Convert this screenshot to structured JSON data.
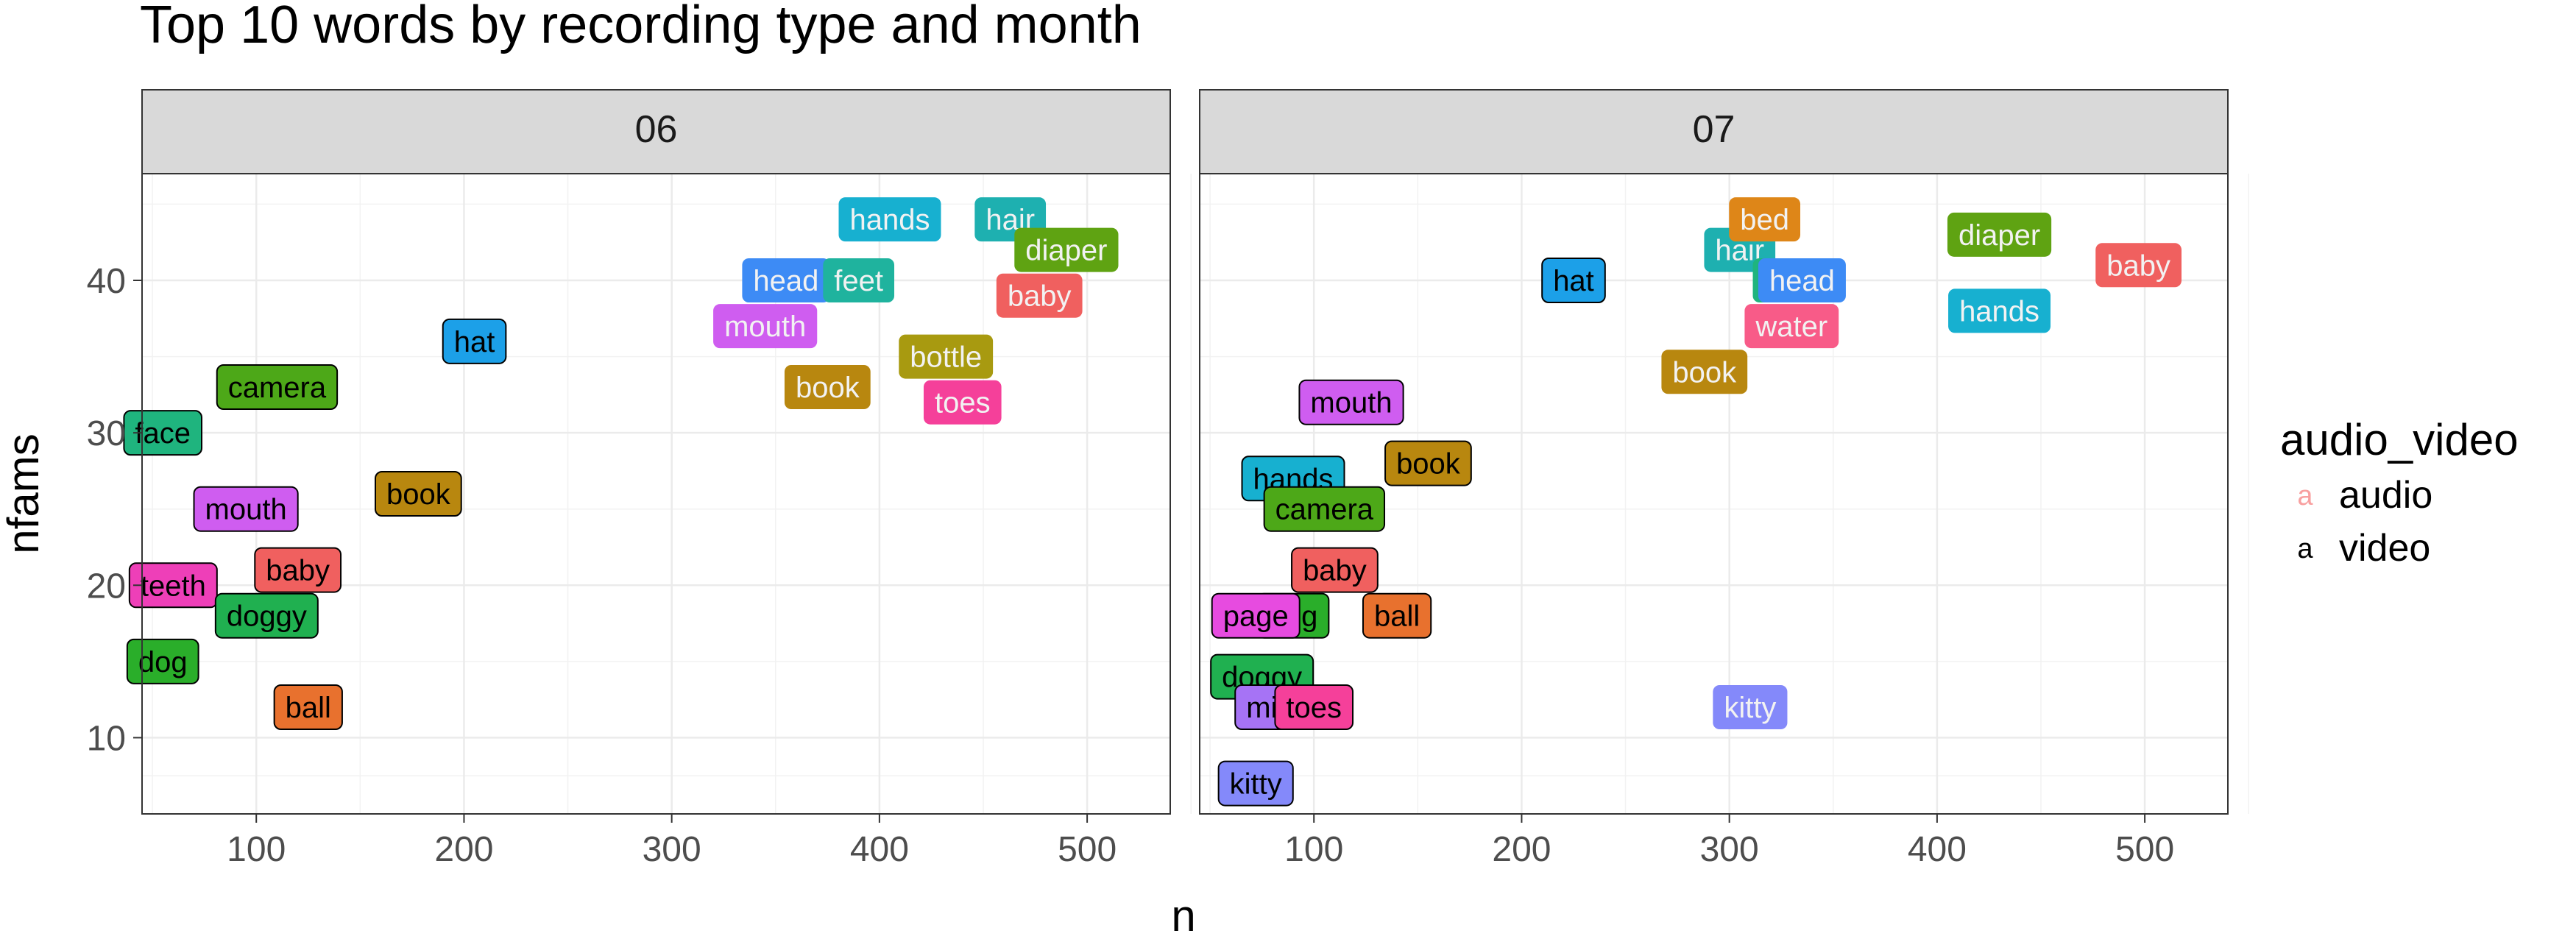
{
  "chart_data": {
    "type": "scatter",
    "title": "Top 10 words by recording type and month",
    "xlabel": "n",
    "ylabel": "nfams",
    "xlim": [
      45,
      540
    ],
    "ylim": [
      5,
      47
    ],
    "x_ticks": [
      "100",
      "200",
      "300",
      "400",
      "500"
    ],
    "y_ticks": [
      "10",
      "20",
      "30",
      "40"
    ],
    "grid": true,
    "legend": {
      "title": "audio_video",
      "position": "right",
      "entries": [
        {
          "label": "audio",
          "key": "a",
          "color": "#F8A0A0"
        },
        {
          "label": "video",
          "key": "a",
          "color": "#000000"
        }
      ]
    },
    "word_colors": {
      "baby": "#F0605F",
      "ball": "#E8712E",
      "bed": "#DE8618",
      "book": "#B8870F",
      "bottle": "#A89A10",
      "diaper": "#5FA312",
      "dog": "#2AAE2A",
      "doggy": "#20B050",
      "face": "#1FB47E",
      "feet": "#1FB39E",
      "hair": "#1EB0B0",
      "hands": "#17B0D0",
      "hat": "#1CA0E8",
      "head": "#3D8BF5",
      "kitty": "#8489FA",
      "milk": "#A673F5",
      "mouth": "#CF5DF0",
      "page": "#E74BE0",
      "teeth": "#EE3FB8",
      "toes": "#F5409A",
      "water": "#F85B88",
      "camera": "#4DA818"
    },
    "panels": [
      {
        "strip": "06",
        "points": [
          {
            "word": "face",
            "type": "video",
            "x": 55,
            "y": 30
          },
          {
            "word": "camera",
            "type": "video",
            "x": 110,
            "y": 33
          },
          {
            "word": "hat",
            "type": "video",
            "x": 205,
            "y": 36
          },
          {
            "word": "mouth",
            "type": "video",
            "x": 95,
            "y": 25
          },
          {
            "word": "book",
            "type": "video",
            "x": 178,
            "y": 26
          },
          {
            "word": "teeth",
            "type": "video",
            "x": 60,
            "y": 20
          },
          {
            "word": "baby",
            "type": "video",
            "x": 120,
            "y": 21
          },
          {
            "word": "doggy",
            "type": "video",
            "x": 105,
            "y": 18
          },
          {
            "word": "dog",
            "type": "video",
            "x": 55,
            "y": 15
          },
          {
            "word": "ball",
            "type": "video",
            "x": 125,
            "y": 12
          },
          {
            "word": "hands",
            "type": "audio",
            "x": 405,
            "y": 44
          },
          {
            "word": "hair",
            "type": "audio",
            "x": 463,
            "y": 44
          },
          {
            "word": "diaper",
            "type": "audio",
            "x": 490,
            "y": 42
          },
          {
            "word": "head",
            "type": "audio",
            "x": 355,
            "y": 40
          },
          {
            "word": "feet",
            "type": "audio",
            "x": 390,
            "y": 40
          },
          {
            "word": "baby",
            "type": "audio",
            "x": 477,
            "y": 39
          },
          {
            "word": "mouth",
            "type": "audio",
            "x": 345,
            "y": 37
          },
          {
            "word": "bottle",
            "type": "audio",
            "x": 432,
            "y": 35
          },
          {
            "word": "book",
            "type": "audio",
            "x": 375,
            "y": 33
          },
          {
            "word": "toes",
            "type": "audio",
            "x": 440,
            "y": 32
          }
        ]
      },
      {
        "strip": "07",
        "points": [
          {
            "word": "hat",
            "type": "video",
            "x": 225,
            "y": 40
          },
          {
            "word": "mouth",
            "type": "video",
            "x": 118,
            "y": 32
          },
          {
            "word": "book",
            "type": "video",
            "x": 155,
            "y": 28
          },
          {
            "word": "hands",
            "type": "video",
            "x": 90,
            "y": 27
          },
          {
            "word": "camera",
            "type": "video",
            "x": 105,
            "y": 25
          },
          {
            "word": "baby",
            "type": "video",
            "x": 110,
            "y": 21
          },
          {
            "word": "dog",
            "type": "video",
            "x": 90,
            "y": 18
          },
          {
            "word": "page",
            "type": "video",
            "x": 72,
            "y": 18
          },
          {
            "word": "ball",
            "type": "video",
            "x": 140,
            "y": 18
          },
          {
            "word": "doggy",
            "type": "video",
            "x": 75,
            "y": 14
          },
          {
            "word": "milk",
            "type": "video",
            "x": 80,
            "y": 12
          },
          {
            "word": "toes",
            "type": "video",
            "x": 100,
            "y": 12
          },
          {
            "word": "kitty",
            "type": "video",
            "x": 72,
            "y": 7
          },
          {
            "word": "hair",
            "type": "audio",
            "x": 305,
            "y": 42
          },
          {
            "word": "bed",
            "type": "audio",
            "x": 317,
            "y": 44
          },
          {
            "word": "diaper",
            "type": "audio",
            "x": 430,
            "y": 43
          },
          {
            "word": "baby",
            "type": "audio",
            "x": 497,
            "y": 41
          },
          {
            "word": "face",
            "type": "audio",
            "x": 330,
            "y": 40
          },
          {
            "word": "head",
            "type": "audio",
            "x": 335,
            "y": 40
          },
          {
            "word": "hands",
            "type": "audio",
            "x": 430,
            "y": 38
          },
          {
            "word": "water",
            "type": "audio",
            "x": 330,
            "y": 37
          },
          {
            "word": "book",
            "type": "audio",
            "x": 288,
            "y": 34
          },
          {
            "word": "kitty",
            "type": "audio",
            "x": 310,
            "y": 12
          }
        ]
      }
    ]
  }
}
